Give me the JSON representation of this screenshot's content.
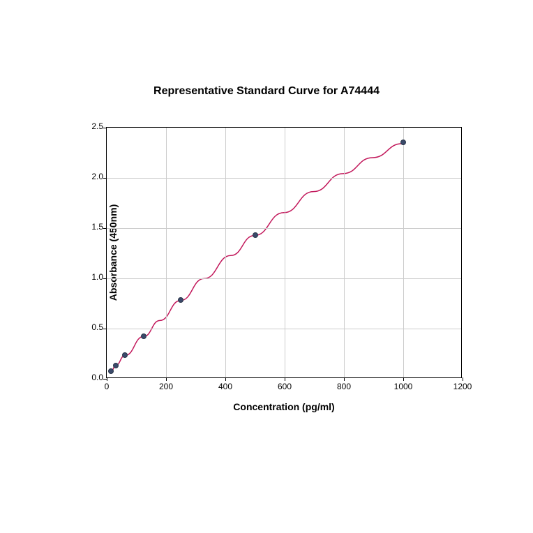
{
  "chart": {
    "type": "line-scatter",
    "title": "Representative Standard Curve for A74444",
    "title_fontsize": 16,
    "title_fontweight": "bold",
    "xlabel": "Concentration (pg/ml)",
    "ylabel": "Absorbance (450nm)",
    "label_fontsize": 14,
    "label_fontweight": "bold",
    "tick_fontsize": 12,
    "xlim": [
      0,
      1200
    ],
    "ylim": [
      0,
      2.5
    ],
    "xticks": [
      0,
      200,
      400,
      600,
      800,
      1000,
      1200
    ],
    "yticks": [
      0.0,
      0.5,
      1.0,
      1.5,
      2.0,
      2.5
    ],
    "background_color": "#ffffff",
    "grid_color": "#cccccc",
    "border_color": "#000000",
    "grid": true,
    "data_points": {
      "x": [
        15,
        30,
        62,
        125,
        250,
        500,
        1000
      ],
      "y": [
        0.06,
        0.12,
        0.22,
        0.41,
        0.77,
        1.42,
        2.34
      ]
    },
    "marker_color": "#3b4a6b",
    "marker_edge_color": "#2a3548",
    "marker_size": 8,
    "line_color": "#c2185b",
    "line_width": 1.5,
    "curve_smooth_points": {
      "x": [
        15,
        30,
        62,
        125,
        180,
        250,
        330,
        420,
        500,
        600,
        700,
        800,
        900,
        1000
      ],
      "y": [
        0.06,
        0.12,
        0.22,
        0.41,
        0.57,
        0.77,
        0.99,
        1.22,
        1.42,
        1.65,
        1.86,
        2.04,
        2.2,
        2.34
      ]
    }
  }
}
